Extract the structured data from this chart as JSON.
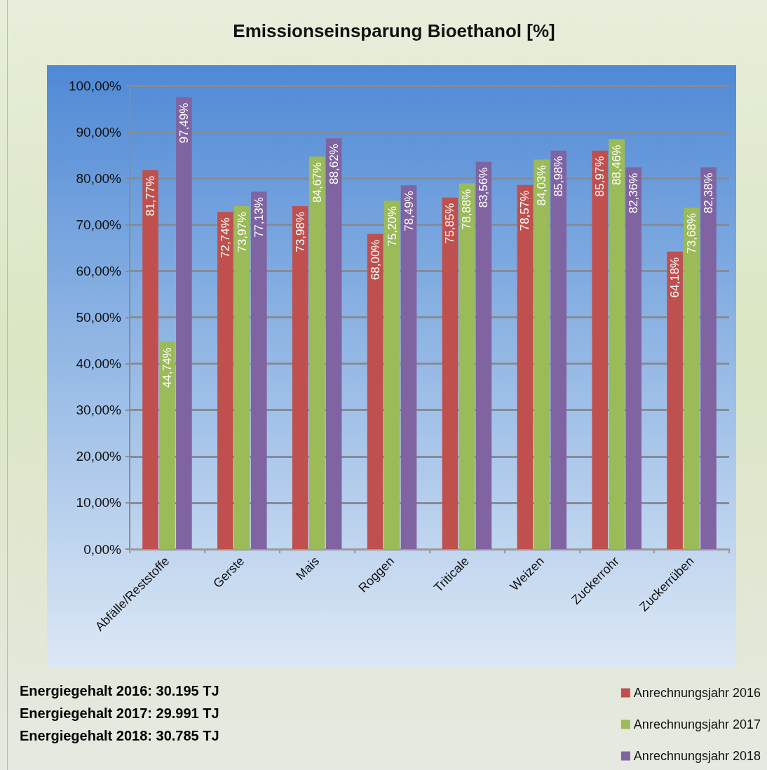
{
  "chart_data": {
    "type": "bar",
    "title": "Emissionseinsparung Bioethanol [%]",
    "categories": [
      "Abfälle/Reststoffe",
      "Gerste",
      "Mais",
      "Roggen",
      "Triticale",
      "Weizen",
      "Zuckerrohr",
      "Zuckerrüben"
    ],
    "series": [
      {
        "name": "Anrechnungsjahr 2016",
        "color": "#c0504d",
        "values": [
          81.77,
          72.74,
          73.98,
          68.0,
          75.85,
          78.57,
          85.97,
          64.18
        ],
        "value_labels": [
          "81,77%",
          "72,74%",
          "73,98%",
          "68,00%",
          "75,85%",
          "78,57%",
          "85,97%",
          "64,18%"
        ]
      },
      {
        "name": "Anrechnungsjahr 2017",
        "color": "#9bbb59",
        "values": [
          44.74,
          73.97,
          84.67,
          75.2,
          78.88,
          84.03,
          88.46,
          73.68
        ],
        "value_labels": [
          "44,74%",
          "73,97%",
          "84,67%",
          "75,20%",
          "78,88%",
          "84,03%",
          "88,46%",
          "73,68%"
        ]
      },
      {
        "name": "Anrechnungsjahr 2018",
        "color": "#8064a2",
        "values": [
          97.49,
          77.13,
          88.62,
          78.49,
          83.56,
          85.98,
          82.36,
          82.38
        ],
        "value_labels": [
          "97,49%",
          "77,13%",
          "88,62%",
          "78,49%",
          "83,56%",
          "85,98%",
          "82,36%",
          "82,38%"
        ]
      }
    ],
    "ylim": [
      0,
      100
    ],
    "yticks": [
      {
        "value": 0,
        "label": "0,00%"
      },
      {
        "value": 10,
        "label": "10,00%"
      },
      {
        "value": 20,
        "label": "20,00%"
      },
      {
        "value": 30,
        "label": "30,00%"
      },
      {
        "value": 40,
        "label": "40,00%"
      },
      {
        "value": 50,
        "label": "50,00%"
      },
      {
        "value": 60,
        "label": "60,00%"
      },
      {
        "value": 70,
        "label": "70,00%"
      },
      {
        "value": 80,
        "label": "80,00%"
      },
      {
        "value": 90,
        "label": "90,00%"
      },
      {
        "value": 100,
        "label": "100,00%"
      }
    ],
    "grid": "y",
    "legend": "bottom right",
    "annotations": [
      "Energiegehalt 2016: 30.195 TJ",
      "Energiegehalt 2017: 29.991 TJ",
      "Energiegehalt 2018: 30.785 TJ"
    ]
  }
}
